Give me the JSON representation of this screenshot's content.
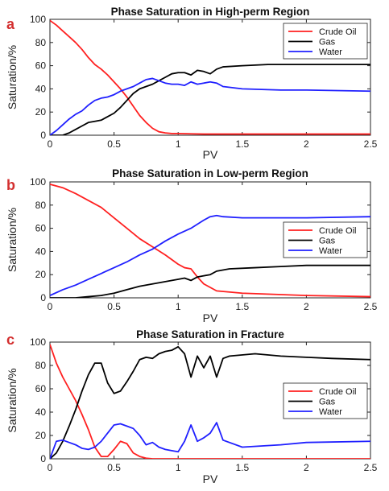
{
  "chart_data": [
    {
      "panel": "a",
      "type": "line",
      "title": "Phase Saturation in High-perm Region",
      "xlabel": "PV",
      "ylabel": "Saturation/%",
      "xlim": [
        0,
        2.5
      ],
      "ylim": [
        0,
        100
      ],
      "xticks": [
        0,
        0.5,
        1,
        1.5,
        2,
        2.5
      ],
      "xtick_labels": [
        "0",
        "0.5",
        "1",
        "1.5",
        "2",
        "2.5"
      ],
      "yticks": [
        0,
        20,
        40,
        60,
        80,
        100
      ],
      "ytick_labels": [
        "0",
        "20",
        "40",
        "60",
        "80",
        "100"
      ],
      "legend_position": "top-right",
      "series": [
        {
          "name": "Crude Oil",
          "color": "#ff2020",
          "x": [
            0,
            0.05,
            0.1,
            0.15,
            0.2,
            0.25,
            0.3,
            0.35,
            0.4,
            0.45,
            0.5,
            0.55,
            0.6,
            0.65,
            0.7,
            0.75,
            0.8,
            0.85,
            0.9,
            0.95,
            1.0,
            1.1,
            1.2,
            1.5,
            2.0,
            2.5
          ],
          "y": [
            99,
            95,
            90,
            85,
            80,
            74,
            67,
            61,
            57,
            52,
            46,
            40,
            33,
            25,
            17,
            11,
            6,
            3,
            2,
            1.5,
            1.5,
            1.2,
            1,
            1,
            1,
            1
          ]
        },
        {
          "name": "Gas",
          "color": "#000000",
          "x": [
            0,
            0.1,
            0.15,
            0.2,
            0.25,
            0.3,
            0.35,
            0.4,
            0.45,
            0.5,
            0.55,
            0.6,
            0.65,
            0.7,
            0.75,
            0.8,
            0.85,
            0.9,
            0.95,
            1.0,
            1.05,
            1.1,
            1.15,
            1.2,
            1.25,
            1.3,
            1.35,
            1.5,
            1.7,
            2.0,
            2.3,
            2.5
          ],
          "y": [
            0,
            0,
            2,
            5,
            8,
            11,
            12,
            13,
            16,
            19,
            24,
            30,
            36,
            40,
            42,
            44,
            47,
            50,
            53,
            54,
            54,
            52,
            56,
            55,
            53,
            57,
            59,
            60,
            61,
            61,
            61,
            61
          ]
        },
        {
          "name": "Water",
          "color": "#2020ff",
          "x": [
            0,
            0.05,
            0.1,
            0.15,
            0.2,
            0.25,
            0.3,
            0.35,
            0.4,
            0.45,
            0.5,
            0.55,
            0.6,
            0.65,
            0.7,
            0.75,
            0.8,
            0.85,
            0.9,
            0.95,
            1.0,
            1.05,
            1.1,
            1.15,
            1.2,
            1.25,
            1.3,
            1.35,
            1.5,
            1.8,
            2.0,
            2.5
          ],
          "y": [
            0,
            4,
            9,
            14,
            18,
            21,
            26,
            30,
            32,
            33,
            35,
            38,
            40,
            42,
            45,
            48,
            49,
            47,
            45,
            44,
            44,
            43,
            46,
            44,
            45,
            46,
            45,
            42,
            40,
            39,
            39,
            38
          ]
        }
      ]
    },
    {
      "panel": "b",
      "type": "line",
      "title": "Phase Saturation in Low-perm Region",
      "xlabel": "PV",
      "ylabel": "Saturation/%",
      "xlim": [
        0,
        2.5
      ],
      "ylim": [
        0,
        100
      ],
      "xticks": [
        0,
        0.5,
        1,
        1.5,
        2,
        2.5
      ],
      "xtick_labels": [
        "0",
        "0.5",
        "1",
        "1.5",
        "2",
        "2.5"
      ],
      "yticks": [
        0,
        20,
        40,
        60,
        80,
        100
      ],
      "ytick_labels": [
        "0",
        "20",
        "40",
        "60",
        "80",
        "100"
      ],
      "legend_position": "right",
      "series": [
        {
          "name": "Crude Oil",
          "color": "#ff2020",
          "x": [
            0,
            0.1,
            0.2,
            0.3,
            0.4,
            0.5,
            0.6,
            0.7,
            0.8,
            0.9,
            1.0,
            1.05,
            1.1,
            1.15,
            1.2,
            1.3,
            1.5,
            2.0,
            2.5
          ],
          "y": [
            98,
            95,
            90,
            84,
            78,
            69,
            60,
            51,
            44,
            37,
            29,
            26,
            25,
            18,
            12,
            6,
            4,
            2,
            1
          ]
        },
        {
          "name": "Gas",
          "color": "#000000",
          "x": [
            0,
            0.2,
            0.3,
            0.4,
            0.5,
            0.6,
            0.7,
            0.8,
            0.9,
            1.0,
            1.05,
            1.1,
            1.15,
            1.2,
            1.25,
            1.3,
            1.4,
            1.6,
            1.8,
            2.0,
            2.5
          ],
          "y": [
            0,
            0,
            1,
            2,
            4,
            7,
            10,
            12,
            14,
            16,
            17,
            15,
            18,
            19,
            20,
            23,
            25,
            26,
            27,
            28,
            28
          ]
        },
        {
          "name": "Water",
          "color": "#2020ff",
          "x": [
            0,
            0.1,
            0.2,
            0.3,
            0.4,
            0.5,
            0.6,
            0.7,
            0.8,
            0.9,
            1.0,
            1.1,
            1.2,
            1.25,
            1.3,
            1.35,
            1.5,
            2.0,
            2.5
          ],
          "y": [
            2,
            7,
            11,
            16,
            21,
            26,
            31,
            37,
            42,
            49,
            55,
            60,
            67,
            70,
            71,
            70,
            69,
            69,
            70
          ]
        }
      ]
    },
    {
      "panel": "c",
      "type": "line",
      "title": "Phase Saturation in Fracture",
      "xlabel": "PV",
      "ylabel": "Saturation/%",
      "xlim": [
        0,
        2.5
      ],
      "ylim": [
        0,
        100
      ],
      "xticks": [
        0,
        0.5,
        1,
        1.5,
        2,
        2.5
      ],
      "xtick_labels": [
        "0",
        "0.5",
        "1",
        "1.5",
        "2",
        "2.5"
      ],
      "yticks": [
        0,
        20,
        40,
        60,
        80,
        100
      ],
      "ytick_labels": [
        "0",
        "20",
        "40",
        "60",
        "80",
        "100"
      ],
      "legend_position": "right",
      "series": [
        {
          "name": "Crude Oil",
          "color": "#ff2020",
          "x": [
            0,
            0.05,
            0.1,
            0.15,
            0.2,
            0.25,
            0.3,
            0.35,
            0.4,
            0.45,
            0.5,
            0.55,
            0.6,
            0.65,
            0.7,
            0.75,
            0.8,
            1.0,
            1.5,
            2.0,
            2.5
          ],
          "y": [
            98,
            82,
            70,
            60,
            50,
            38,
            25,
            10,
            2,
            2,
            8,
            15,
            13,
            5,
            2,
            0.5,
            0,
            0,
            0,
            0,
            0
          ]
        },
        {
          "name": "Gas",
          "color": "#000000",
          "x": [
            0,
            0.05,
            0.1,
            0.15,
            0.2,
            0.25,
            0.3,
            0.35,
            0.4,
            0.45,
            0.5,
            0.55,
            0.6,
            0.65,
            0.7,
            0.75,
            0.8,
            0.85,
            0.9,
            0.95,
            1.0,
            1.05,
            1.1,
            1.15,
            1.2,
            1.25,
            1.3,
            1.35,
            1.4,
            1.6,
            1.8,
            2.0,
            2.2,
            2.5
          ],
          "y": [
            0,
            5,
            15,
            28,
            42,
            58,
            72,
            82,
            82,
            65,
            56,
            58,
            66,
            75,
            85,
            87,
            86,
            90,
            92,
            93,
            96,
            90,
            70,
            88,
            78,
            88,
            70,
            86,
            88,
            90,
            88,
            87,
            86,
            85
          ]
        },
        {
          "name": "Water",
          "color": "#2020ff",
          "x": [
            0,
            0.05,
            0.1,
            0.15,
            0.2,
            0.25,
            0.3,
            0.35,
            0.4,
            0.45,
            0.5,
            0.55,
            0.6,
            0.65,
            0.7,
            0.75,
            0.8,
            0.85,
            0.9,
            0.95,
            1.0,
            1.05,
            1.1,
            1.15,
            1.2,
            1.25,
            1.3,
            1.35,
            1.5,
            1.8,
            2.0,
            2.5
          ],
          "y": [
            0,
            15,
            16,
            14,
            12,
            9,
            8,
            10,
            15,
            22,
            29,
            30,
            28,
            26,
            20,
            12,
            14,
            10,
            8,
            7,
            6,
            15,
            29,
            15,
            18,
            22,
            31,
            16,
            10,
            12,
            14,
            15
          ]
        }
      ]
    }
  ]
}
